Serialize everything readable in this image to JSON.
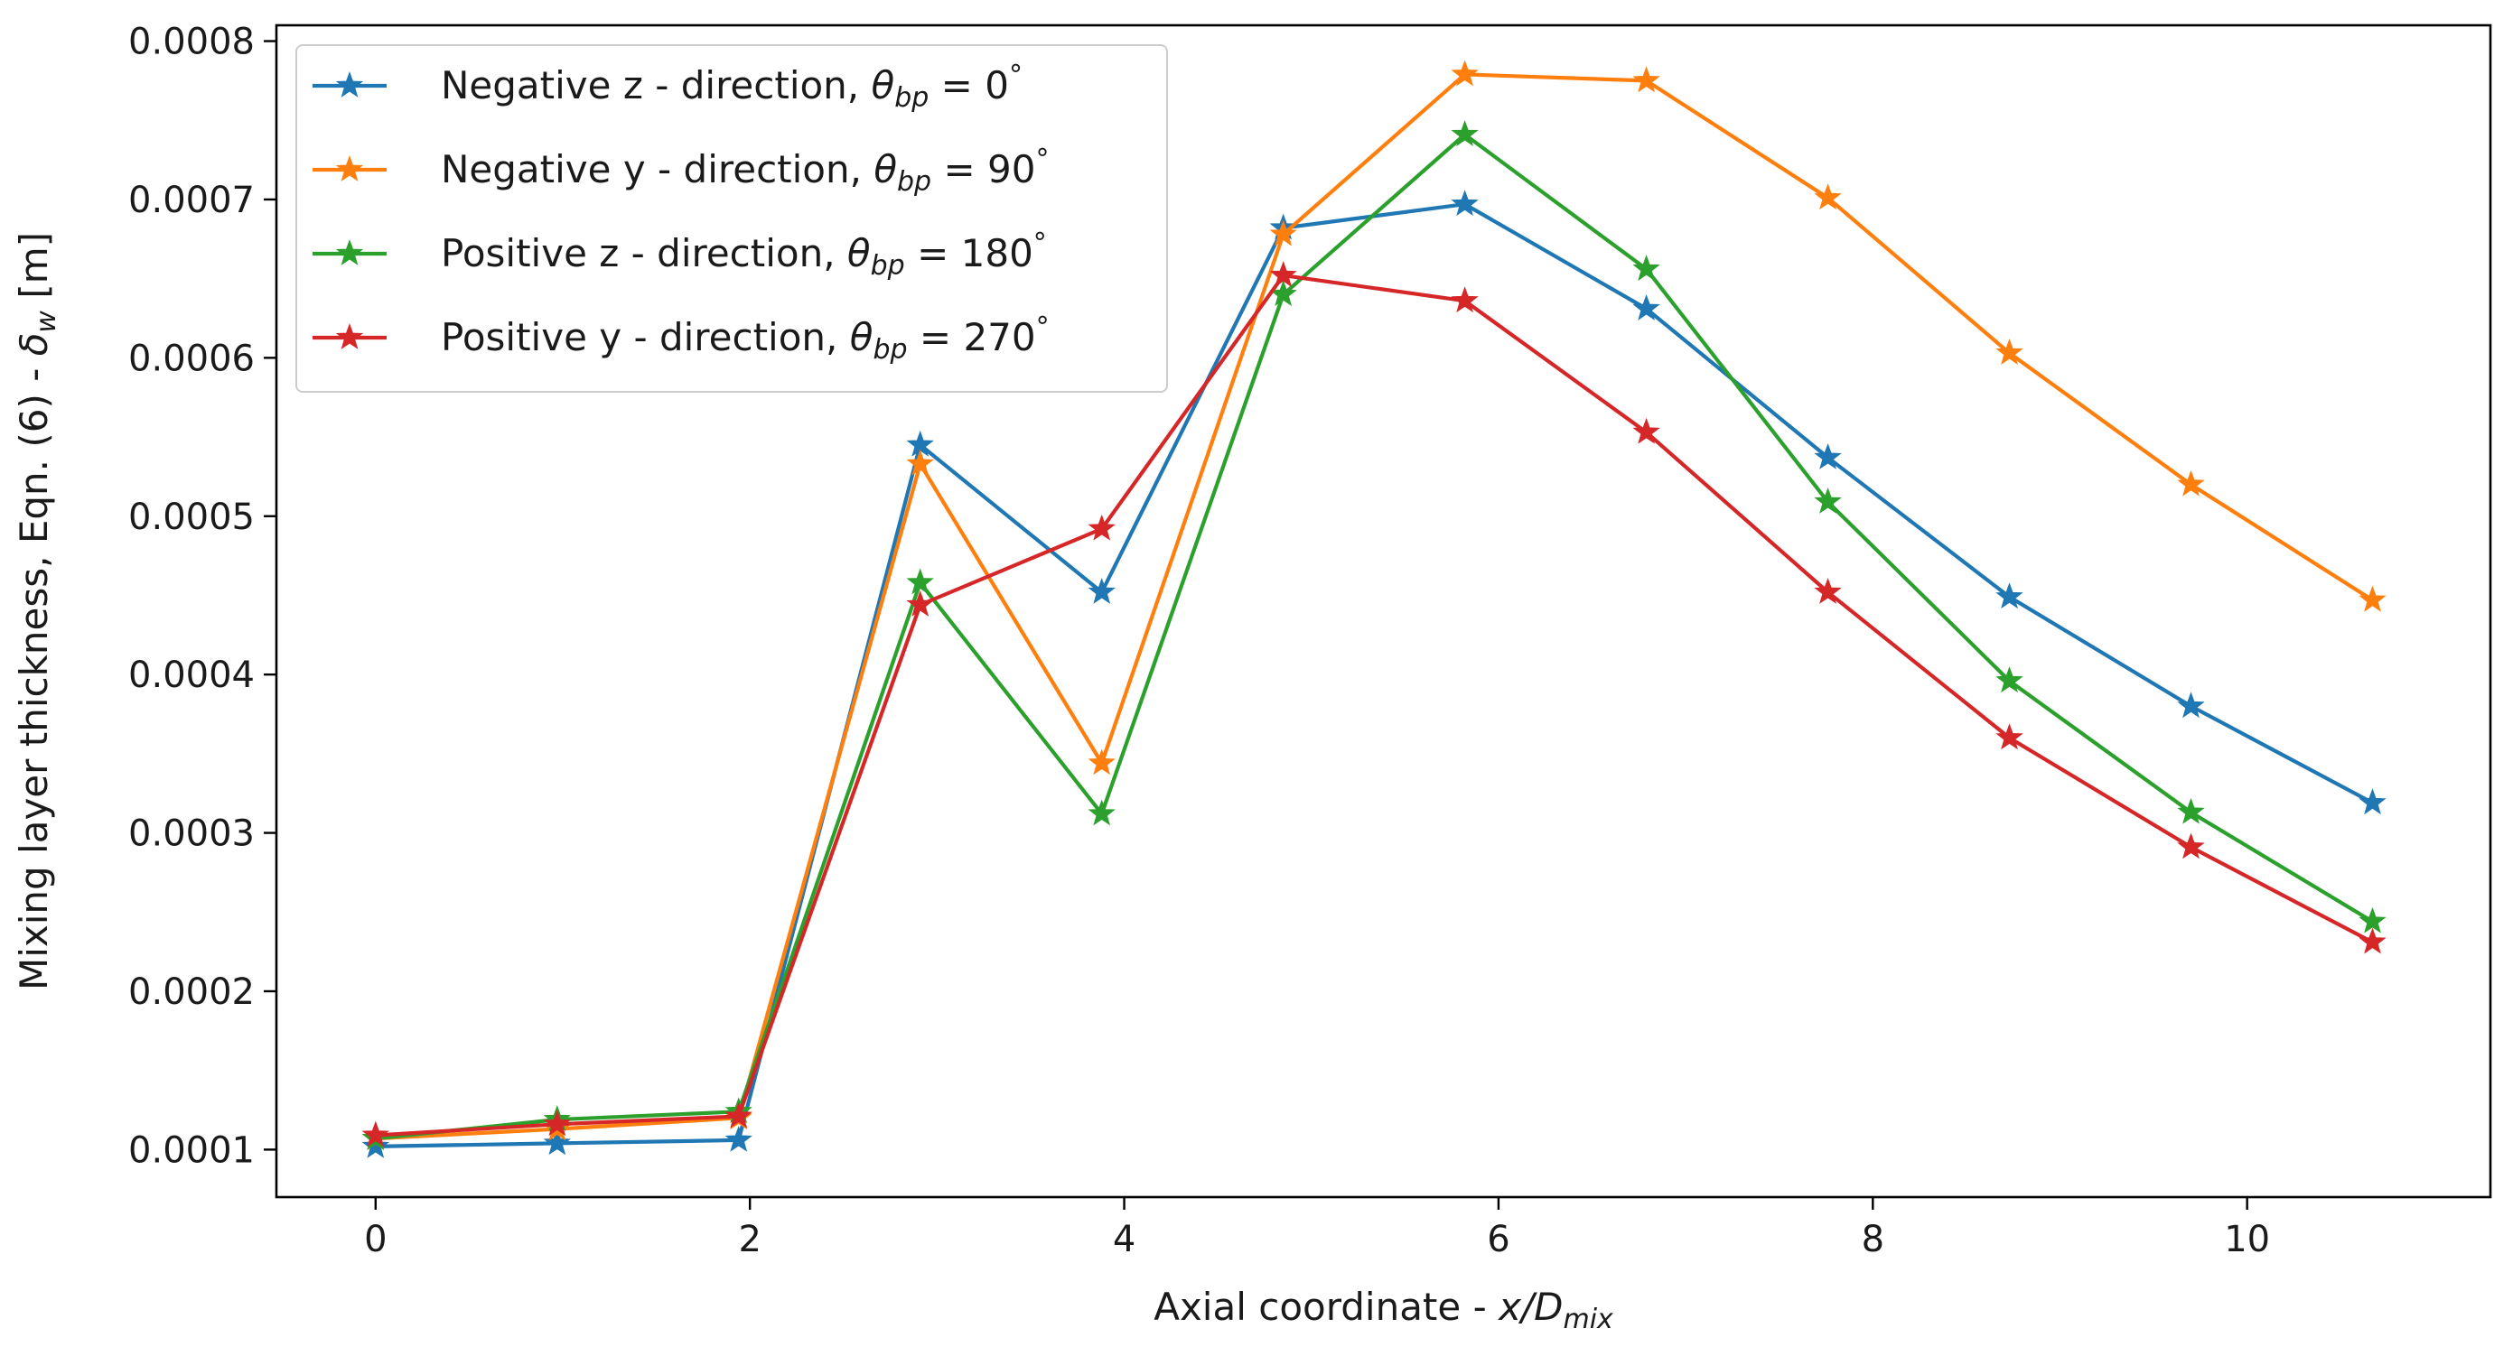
{
  "chart_data": {
    "type": "line",
    "title": "",
    "xlabel": "Axial coordinate - ",
    "xlabel_math": "x/D",
    "xlabel_sub": "mix",
    "ylabel": "Mixing layer thickness, Eqn. (6) - ",
    "ylabel_math": "δ",
    "ylabel_sub": "w",
    "ylabel_unit": " [m]",
    "xlim": [
      -0.53,
      11.3
    ],
    "ylim": [
      7e-05,
      0.00081
    ],
    "xticks": [
      0,
      2,
      4,
      6,
      8,
      10
    ],
    "xtick_labels": [
      "0",
      "2",
      "4",
      "6",
      "8",
      "10"
    ],
    "yticks": [
      0.0001,
      0.0002,
      0.0003,
      0.0004,
      0.0005,
      0.0006,
      0.0007,
      0.0008
    ],
    "ytick_labels": [
      "0.0001",
      "0.0002",
      "0.0003",
      "0.0004",
      "0.0005",
      "0.0006",
      "0.0007",
      "0.0008"
    ],
    "grid": false,
    "legend_position": "top-left",
    "marker": "star",
    "x": [
      0,
      0.97,
      1.94,
      2.91,
      3.88,
      4.85,
      5.82,
      6.79,
      7.76,
      8.73,
      9.7,
      10.67
    ],
    "series": [
      {
        "name": "Negative z - direction, ",
        "label_sub": "bp",
        "label_value": "0",
        "color": "#1f77b4",
        "values": [
          0.000102,
          0.000104,
          0.000106,
          0.000545,
          0.000452,
          0.000682,
          0.000697,
          0.000631,
          0.000537,
          0.000449,
          0.00038,
          0.000319
        ]
      },
      {
        "name": "Negative y - direction, ",
        "label_sub": "bp",
        "label_value": "90",
        "color": "#ff7f0e",
        "values": [
          0.000107,
          0.000113,
          0.00012,
          0.000533,
          0.000344,
          0.000678,
          0.000779,
          0.000775,
          0.000701,
          0.000603,
          0.00052,
          0.000447
        ]
      },
      {
        "name": "Positive z - direction, ",
        "label_sub": "bp",
        "label_value": "180",
        "color": "#2ca02c",
        "values": [
          0.000107,
          0.000119,
          0.000124,
          0.000458,
          0.000312,
          0.00064,
          0.000741,
          0.000656,
          0.000509,
          0.000396,
          0.000313,
          0.000244
        ]
      },
      {
        "name": "Positive y - direction, ",
        "label_sub": "bp",
        "label_value": "270",
        "color": "#d62728",
        "values": [
          0.000109,
          0.000116,
          0.000121,
          0.000444,
          0.000492,
          0.000652,
          0.000636,
          0.000553,
          0.000452,
          0.00036,
          0.000291,
          0.000231
        ]
      }
    ]
  }
}
